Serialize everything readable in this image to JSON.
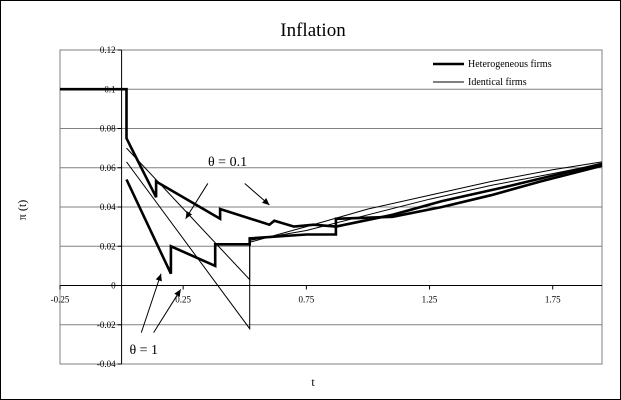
{
  "chart_data": {
    "type": "line",
    "title": "Inflation",
    "xlabel": "t",
    "ylabel": "π (t)",
    "xlim": [
      -0.25,
      1.95
    ],
    "ylim": [
      -0.04,
      0.12
    ],
    "x_ticks": [
      "-0.25",
      "0.25",
      "0.75",
      "1.25",
      "1.75"
    ],
    "x_tick_values": [
      -0.25,
      0.25,
      0.75,
      1.25,
      1.75
    ],
    "y_ticks": [
      "-0.04",
      "-0.02",
      "0",
      "0.02",
      "0.04",
      "0.06",
      "0.08",
      "0.1",
      "0.12"
    ],
    "y_tick_values": [
      -0.04,
      -0.02,
      0,
      0.02,
      0.04,
      0.06,
      0.08,
      0.1,
      0.12
    ],
    "grid": "horizontal",
    "legend_position": "top-right",
    "series": [
      {
        "name": "Heterogeneous firms",
        "style": "thick",
        "lines": [
          [
            [
              -0.25,
              0.1
            ],
            [
              0.02,
              0.1
            ],
            [
              0.02,
              0.075
            ],
            [
              0.14,
              0.045
            ],
            [
              0.14,
              0.053
            ],
            [
              0.4,
              0.034
            ],
            [
              0.4,
              0.039
            ],
            [
              0.6,
              0.031
            ],
            [
              0.62,
              0.033
            ],
            [
              0.7,
              0.03
            ],
            [
              0.78,
              0.031
            ],
            [
              0.87,
              0.03
            ],
            [
              0.87,
              0.034
            ],
            [
              1.1,
              0.035
            ],
            [
              1.3,
              0.04
            ],
            [
              1.5,
              0.046
            ],
            [
              1.7,
              0.053
            ],
            [
              1.95,
              0.061
            ]
          ],
          [
            [
              0.02,
              0.054
            ],
            [
              0.2,
              0.006
            ],
            [
              0.2,
              0.02
            ],
            [
              0.38,
              0.01
            ],
            [
              0.38,
              0.021
            ],
            [
              0.52,
              0.021
            ],
            [
              0.52,
              0.024
            ],
            [
              0.75,
              0.026
            ],
            [
              0.87,
              0.026
            ],
            [
              0.87,
              0.03
            ],
            [
              1.1,
              0.036
            ],
            [
              1.3,
              0.043
            ],
            [
              1.55,
              0.05
            ],
            [
              1.75,
              0.056
            ],
            [
              1.95,
              0.062
            ]
          ]
        ]
      },
      {
        "name": "Identical firms",
        "style": "thin",
        "lines": [
          [
            [
              0.02,
              0.07
            ],
            [
              0.52,
              0.003
            ],
            [
              0.52,
              0.023
            ],
            [
              0.75,
              0.028
            ],
            [
              1.0,
              0.036
            ],
            [
              1.25,
              0.044
            ],
            [
              1.5,
              0.051
            ],
            [
              1.75,
              0.057
            ],
            [
              1.95,
              0.062
            ]
          ],
          [
            [
              0.02,
              0.063
            ],
            [
              0.52,
              -0.022
            ],
            [
              0.52,
              0.022
            ],
            [
              0.75,
              0.03
            ],
            [
              1.0,
              0.039
            ],
            [
              1.25,
              0.046
            ],
            [
              1.5,
              0.053
            ],
            [
              1.75,
              0.059
            ],
            [
              1.95,
              0.063
            ]
          ]
        ]
      }
    ],
    "annotations": [
      {
        "text": "θ = 0.1",
        "anchor": [
          0.43,
          0.061
        ],
        "arrows": [
          {
            "from": [
              0.35,
              0.052
            ],
            "to": [
              0.26,
              0.034
            ]
          },
          {
            "from": [
              0.5,
              0.052
            ],
            "to": [
              0.6,
              0.041
            ]
          }
        ]
      },
      {
        "text": "θ = 1",
        "anchor": [
          0.09,
          -0.035
        ],
        "arrows": [
          {
            "from": [
              0.08,
              -0.024
            ],
            "to": [
              0.16,
              0.006
            ]
          },
          {
            "from": [
              0.13,
              -0.024
            ],
            "to": [
              0.24,
              -0.002
            ]
          }
        ]
      }
    ]
  }
}
